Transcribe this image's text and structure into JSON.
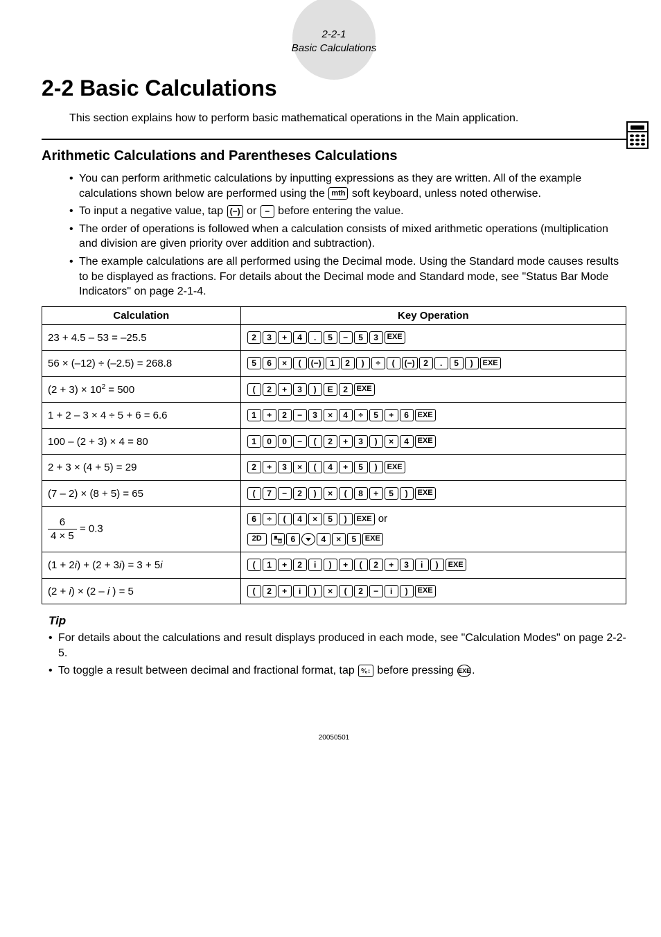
{
  "header": {
    "page_num": "2-2-1",
    "section_name": "Basic Calculations"
  },
  "title": "2-2  Basic Calculations",
  "intro": "This section explains how to perform basic mathematical operations in the Main application.",
  "subheading": "Arithmetic Calculations and Parentheses Calculations",
  "bullets": {
    "b1a": "You can perform arithmetic calculations by inputting expressions as they are written. All of the example calculations shown below are performed using the ",
    "b1_key": "mth",
    "b1b": " soft keyboard, unless noted otherwise.",
    "b2a": "To input a negative value, tap ",
    "b2b": " or ",
    "b2c": " before entering the value.",
    "b3": "The order of operations is followed when a calculation consists of mixed arithmetic operations (multiplication and division are given priority over addition and subtraction).",
    "b4": "The example calculations are all performed using the Decimal mode. Using the Standard mode causes results to be displayed as fractions. For details about the Decimal mode and Standard mode, see \"Status Bar Mode Indicators\" on page 2-1-4."
  },
  "table": {
    "h1": "Calculation",
    "h2": "Key Operation",
    "rows": [
      {
        "calc": "23 + 4.5 – 53 = –25.5",
        "keys": [
          "2",
          "3",
          "+",
          "4",
          ".",
          "5",
          "−",
          "5",
          "3",
          "EXE"
        ]
      },
      {
        "calc": "56 × (–12) ÷ (–2.5) = 268.8",
        "keys": [
          "5",
          "6",
          "×",
          "(",
          "(−)",
          "1",
          "2",
          ")",
          "÷",
          "(",
          "(−)",
          "2",
          ".",
          "5",
          ")",
          "EXE"
        ]
      },
      {
        "calc_html": "(2 + 3) × 10<sup>2</sup> = 500",
        "keys": [
          "(",
          "2",
          "+",
          "3",
          ")",
          "E",
          "2",
          "EXE"
        ]
      },
      {
        "calc": "1 + 2 – 3 × 4  ÷ 5 + 6 = 6.6",
        "keys": [
          "1",
          "+",
          "2",
          "−",
          "3",
          "×",
          "4",
          "÷",
          "5",
          "+",
          "6",
          "EXE"
        ]
      },
      {
        "calc": "100 – (2 + 3) × 4 = 80",
        "keys": [
          "1",
          "0",
          "0",
          "−",
          "(",
          "2",
          "+",
          "3",
          ")",
          "×",
          "4",
          "EXE"
        ]
      },
      {
        "calc": "2 + 3 × (4 + 5) = 29",
        "keys": [
          "2",
          "+",
          "3",
          "×",
          "(",
          "4",
          "+",
          "5",
          ")",
          "EXE"
        ]
      },
      {
        "calc": "(7 – 2) × (8 + 5) = 65",
        "keys": [
          "(",
          "7",
          "−",
          "2",
          ")",
          "×",
          "(",
          "8",
          "+",
          "5",
          ")",
          "EXE"
        ]
      },
      {
        "frac_n": "6",
        "frac_d": "4 × 5",
        "frac_eq": " = 0.3",
        "keys_line1": [
          "6",
          "÷",
          "(",
          "4",
          "×",
          "5",
          ")",
          "EXE"
        ],
        "keys_line1_suffix": " or",
        "keys_line2_pre": "2D",
        "keys_line2": [
          "FRAC",
          "6",
          "▼",
          "4",
          "×",
          "5",
          "EXE"
        ]
      },
      {
        "calc_html": "(1 + 2<span class='ital'>i</span>) + (2 + 3<span class='ital'>i</span>) = 3 + 5<span class='ital'>i</span>",
        "keys": [
          "(",
          "1",
          "+",
          "2",
          "i",
          ")",
          "+",
          "(",
          "2",
          "+",
          "3",
          "i",
          ")",
          "EXE"
        ]
      },
      {
        "calc_html": "(2 + <span class='ital'>i</span>) × (2 – <span class='ital'>i</span> ) = 5",
        "keys": [
          "(",
          "2",
          "+",
          "i",
          ")",
          "×",
          "(",
          "2",
          "−",
          "i",
          ")",
          "EXE"
        ]
      }
    ]
  },
  "tip": {
    "heading": "Tip",
    "t1": "For details about the calculations and result displays produced in each mode, see \"Calculation Modes\" on page 2-2-5.",
    "t2a": "To toggle a result between decimal and fractional format, tap ",
    "t2_key": "⁰⁄₀↕",
    "t2b": " before pressing ",
    "t2_key2": "EXE",
    "t2c": "."
  },
  "footer": "20050501"
}
